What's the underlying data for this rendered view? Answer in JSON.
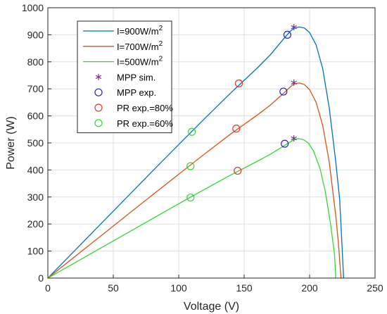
{
  "chart_data": {
    "type": "line",
    "title": "",
    "xlabel": "Voltage (V)",
    "ylabel": "Power (W)",
    "xlim": [
      0,
      250
    ],
    "ylim": [
      0,
      1000
    ],
    "xticks": [
      0,
      50,
      100,
      150,
      200,
      250
    ],
    "yticks": [
      0,
      100,
      200,
      300,
      400,
      500,
      600,
      700,
      800,
      900,
      1000
    ],
    "grid": true,
    "legend_position": "top-left",
    "series": [
      {
        "name": "I=900W/m",
        "superscript": "2",
        "kind": "line",
        "color": "#0072BD",
        "points": [
          [
            0,
            0
          ],
          [
            20,
            99
          ],
          [
            40,
            198
          ],
          [
            60,
            297
          ],
          [
            80,
            396
          ],
          [
            100,
            494
          ],
          [
            120,
            591
          ],
          [
            140,
            686
          ],
          [
            160,
            777
          ],
          [
            170,
            826
          ],
          [
            180,
            884
          ],
          [
            185,
            912
          ],
          [
            188,
            924
          ],
          [
            192,
            929
          ],
          [
            196,
            925
          ],
          [
            200,
            908
          ],
          [
            205,
            862
          ],
          [
            210,
            775
          ],
          [
            215,
            630
          ],
          [
            220,
            430
          ],
          [
            223,
            290
          ],
          [
            226,
            0
          ]
        ]
      },
      {
        "name": "I=700W/m",
        "superscript": "2",
        "kind": "line",
        "color": "#D95319",
        "points": [
          [
            0,
            0
          ],
          [
            20,
            77
          ],
          [
            40,
            154
          ],
          [
            60,
            231
          ],
          [
            80,
            308
          ],
          [
            100,
            384
          ],
          [
            120,
            460
          ],
          [
            140,
            534
          ],
          [
            160,
            603
          ],
          [
            170,
            640
          ],
          [
            180,
            683
          ],
          [
            185,
            706
          ],
          [
            188,
            718
          ],
          [
            192,
            722
          ],
          [
            196,
            716
          ],
          [
            200,
            697
          ],
          [
            205,
            650
          ],
          [
            210,
            565
          ],
          [
            215,
            430
          ],
          [
            220,
            230
          ],
          [
            222,
            130
          ],
          [
            224,
            0
          ]
        ]
      },
      {
        "name": "I=500W/m",
        "superscript": "2",
        "kind": "line",
        "color": "#33D633",
        "points": [
          [
            0,
            0
          ],
          [
            20,
            55
          ],
          [
            40,
            110
          ],
          [
            60,
            165
          ],
          [
            80,
            220
          ],
          [
            100,
            275
          ],
          [
            120,
            329
          ],
          [
            140,
            382
          ],
          [
            160,
            432
          ],
          [
            170,
            458
          ],
          [
            180,
            488
          ],
          [
            185,
            503
          ],
          [
            188,
            512
          ],
          [
            191,
            516
          ],
          [
            195,
            513
          ],
          [
            199,
            500
          ],
          [
            203,
            470
          ],
          [
            208,
            405
          ],
          [
            212,
            320
          ],
          [
            216,
            200
          ],
          [
            219,
            90
          ],
          [
            220,
            0
          ]
        ]
      },
      {
        "name": "MPP sim.",
        "kind": "marker",
        "marker": "asterisk",
        "color": "#7E2F8E",
        "points": [
          [
            188,
            928
          ],
          [
            188,
            723
          ],
          [
            188,
            517
          ]
        ]
      },
      {
        "name": "MPP exp.",
        "kind": "marker",
        "marker": "circle",
        "color": "#2222D0",
        "points": [
          [
            183,
            900
          ],
          [
            180,
            690
          ],
          [
            181,
            497
          ]
        ]
      },
      {
        "name": "PR exp.=80%",
        "kind": "marker",
        "marker": "circle",
        "color": "#E8332A",
        "points": [
          [
            146,
            720
          ],
          [
            144,
            553
          ],
          [
            145,
            397
          ]
        ]
      },
      {
        "name": "PR exp.=60%",
        "kind": "marker",
        "marker": "circle",
        "color": "#33D633",
        "points": [
          [
            110,
            541
          ],
          [
            109,
            414
          ],
          [
            109,
            298
          ]
        ]
      }
    ]
  }
}
